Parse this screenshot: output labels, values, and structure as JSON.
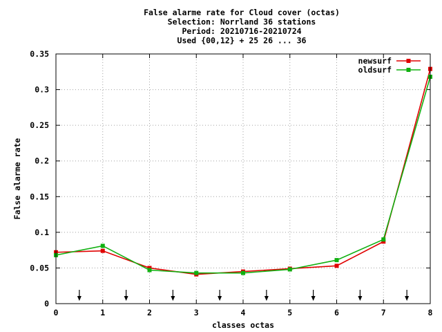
{
  "chart_data": {
    "type": "line",
    "title_lines": [
      "False alarme rate  for Cloud cover (octas)",
      "Selection: Norrland     36 stations",
      "Period: 20210716-20210724",
      "Used {00,12} + 25 26 ... 36"
    ],
    "xlabel": "classes octas",
    "ylabel": "False alarme rate",
    "xlim": [
      0,
      8
    ],
    "ylim": [
      0,
      0.35
    ],
    "x_ticks": [
      "0",
      "1",
      "2",
      "3",
      "4",
      "5",
      "6",
      "7",
      "8"
    ],
    "y_ticks": [
      "0",
      "0.05",
      "0.1",
      "0.15",
      "0.2",
      "0.25",
      "0.3",
      "0.35"
    ],
    "grid": true,
    "legend_position": "top-right",
    "x": [
      0,
      1,
      2,
      3,
      4,
      5,
      6,
      7,
      8
    ],
    "series": [
      {
        "name": "newsurf",
        "color": "#e00000",
        "values": [
          0.072,
          0.074,
          0.05,
          0.041,
          0.045,
          0.049,
          0.053,
          0.087,
          0.329
        ]
      },
      {
        "name": "oldsurf",
        "color": "#10b010",
        "values": [
          0.068,
          0.081,
          0.047,
          0.043,
          0.043,
          0.048,
          0.061,
          0.09,
          0.318
        ]
      }
    ],
    "arrow_markers_x": [
      0.5,
      1.5,
      2.5,
      3.5,
      4.5,
      5.5,
      6.5,
      7.5
    ]
  }
}
